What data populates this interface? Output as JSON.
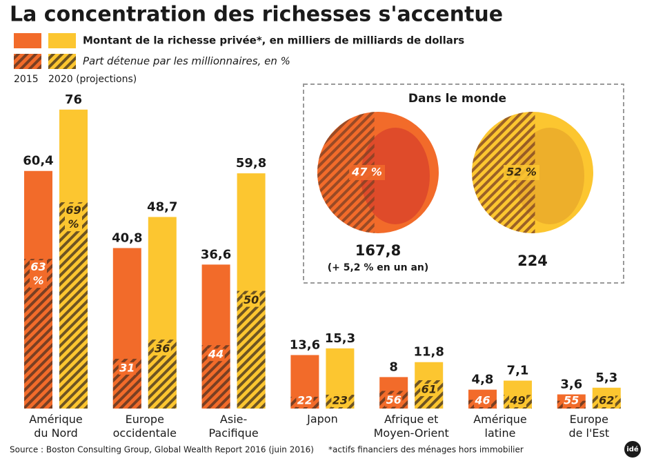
{
  "title": "La concentration des richesses s'accentue",
  "legend": {
    "amount": "Montant de la richesse privée*, en milliers de milliards de dollars",
    "share": "Part détenue par les millionnaires, en %",
    "years": [
      "2015",
      "2020 (projections)"
    ]
  },
  "chart_data": {
    "type": "bar",
    "categories": [
      "Amérique\ndu Nord",
      "Europe\noccidentale",
      "Asie-\nPacifique",
      "Japon",
      "Afrique et\nMoyen-Orient",
      "Amérique\nlatine",
      "Europe\nde l'Est"
    ],
    "series": [
      {
        "name": "2015",
        "color": "#f26b2a",
        "values": [
          60.4,
          40.8,
          36.6,
          13.6,
          8,
          4.8,
          3.6
        ],
        "value_labels": [
          "60,4",
          "40,8",
          "36,6",
          "13,6",
          "8",
          "4,8",
          "3,6"
        ],
        "shares": [
          63,
          31,
          44,
          22,
          56,
          46,
          55
        ],
        "share_labels": [
          "63\n%",
          "31",
          "44",
          "22",
          "56",
          "46",
          "55"
        ]
      },
      {
        "name": "2020",
        "color": "#fcc630",
        "values": [
          76,
          48.7,
          59.8,
          15.3,
          11.8,
          7.1,
          5.3
        ],
        "value_labels": [
          "76",
          "48,7",
          "59,8",
          "15,3",
          "11,8",
          "7,1",
          "5,3"
        ],
        "shares": [
          69,
          36,
          50,
          23,
          61,
          49,
          62
        ],
        "share_labels": [
          "69\n%",
          "36",
          "50",
          "23",
          "61",
          "49",
          "62"
        ]
      }
    ]
  },
  "world": {
    "title": "Dans le monde",
    "items": [
      {
        "value": 167.8,
        "value_label": "167,8",
        "share": 47,
        "share_label": "47 %",
        "note": "(+ 5,2 % en un an)",
        "color": "#f26b2a"
      },
      {
        "value": 224,
        "value_label": "224",
        "share": 52,
        "share_label": "52 %",
        "color": "#fcc630"
      }
    ]
  },
  "source": "Source : Boston Consulting Group, Global Wealth Report 2016 (juin 2016)",
  "footnote": "*actifs financiers des ménages hors immobilier",
  "logo": "idé"
}
